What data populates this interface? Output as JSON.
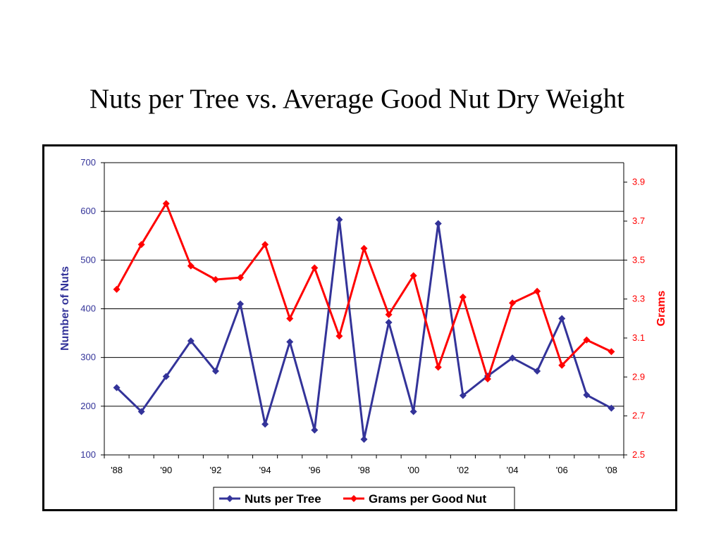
{
  "title": "Nuts per Tree vs. Average Good Nut Dry Weight",
  "chart_data": {
    "type": "line",
    "x": [
      "'88",
      "'89",
      "'90",
      "'91",
      "'92",
      "'93",
      "'94",
      "'95",
      "'96",
      "'97",
      "'98",
      "'99",
      "'00",
      "'01",
      "'02",
      "'03",
      "'04",
      "'05",
      "'06",
      "'07",
      "'08"
    ],
    "x_tick_labels": [
      "'88",
      "'90",
      "'92",
      "'94",
      "'96",
      "'98",
      "'00",
      "'02",
      "'04",
      "'06",
      "'08"
    ],
    "ylabel": "Number of Nuts",
    "ylim": [
      100,
      700
    ],
    "yticks": [
      100,
      200,
      300,
      400,
      500,
      600,
      700
    ],
    "y2label": "Grams",
    "y2lim": [
      2.5,
      4.0
    ],
    "y2ticks": [
      2.5,
      2.7,
      2.9,
      3.1,
      3.3,
      3.5,
      3.7,
      3.9
    ],
    "grid": true,
    "legend_position": "bottom",
    "series": [
      {
        "name": "Nuts per Tree",
        "axis": "left",
        "color": "#333399",
        "marker": "diamond",
        "values": [
          238,
          189,
          261,
          334,
          272,
          410,
          163,
          332,
          151,
          583,
          132,
          372,
          189,
          575,
          222,
          262,
          299,
          272,
          380,
          223,
          196
        ]
      },
      {
        "name": "Grams per Good Nut",
        "axis": "right",
        "color": "#ff0000",
        "marker": "diamond",
        "values": [
          3.35,
          3.58,
          3.79,
          3.47,
          3.4,
          3.41,
          3.58,
          3.2,
          3.46,
          3.11,
          3.56,
          3.22,
          3.42,
          2.95,
          3.31,
          2.89,
          3.28,
          3.34,
          2.96,
          3.09,
          3.03
        ]
      }
    ]
  }
}
